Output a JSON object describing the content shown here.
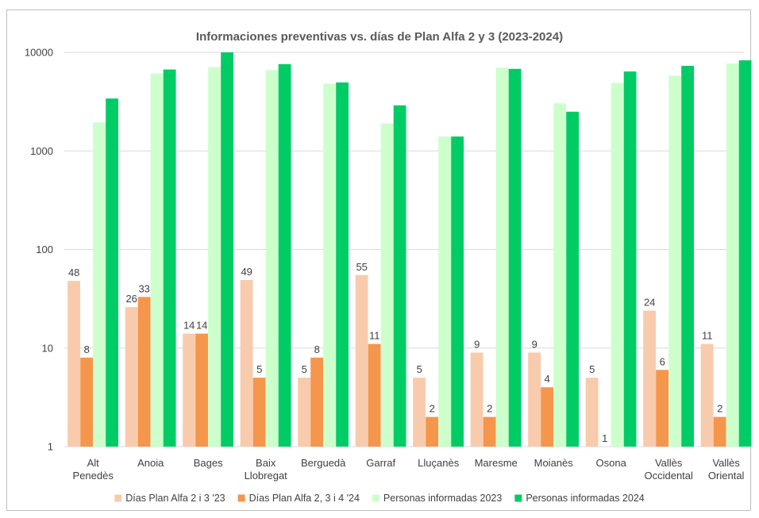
{
  "chart_data": {
    "type": "bar",
    "title": "Informaciones preventivas vs. días de Plan Alfa 2 y 3  (2023-2024)",
    "yscale": "log",
    "ylim": [
      1,
      10000
    ],
    "yticks": [
      "1",
      "10",
      "100",
      "1000",
      "10000"
    ],
    "grid": true,
    "legend": "bottom",
    "categories": [
      [
        "Alt",
        "Penedès"
      ],
      [
        "Anoia"
      ],
      [
        "Bages"
      ],
      [
        "Baix",
        "Llobregat"
      ],
      [
        "Berguedà"
      ],
      [
        "Garraf"
      ],
      [
        "Lluçanès"
      ],
      [
        "Maresme"
      ],
      [
        "Moianès"
      ],
      [
        "Osona"
      ],
      [
        "Vallès",
        "Occidental"
      ],
      [
        "Vallès",
        "Oriental"
      ]
    ],
    "series": [
      {
        "name": "Días Plan Alfa 2 i 3 '23",
        "color": "#f8cbad",
        "values": [
          48,
          26,
          14,
          49,
          5,
          55,
          5,
          9,
          9,
          5,
          24,
          11
        ],
        "labels": [
          "48",
          "26",
          "14",
          "49",
          "5",
          "55",
          "5",
          "9",
          "9",
          "5",
          "24",
          "11"
        ]
      },
      {
        "name": "Días Plan Alfa 2, 3  i 4 '24",
        "color": "#f4964c",
        "values": [
          8,
          33,
          14,
          5,
          8,
          11,
          2,
          2,
          4,
          1,
          6,
          2
        ],
        "labels": [
          "8",
          "33",
          "14",
          "5",
          "8",
          "11",
          "2",
          "2",
          "4",
          "1",
          "6",
          "2"
        ]
      },
      {
        "name": "Personas informadas 2023",
        "color": "#ccffcc",
        "values": [
          1950,
          6100,
          7100,
          6600,
          4800,
          1900,
          1400,
          7000,
          3050,
          4900,
          5800,
          7700
        ],
        "labels": []
      },
      {
        "name": "Personas informadas 2024",
        "color": "#00cc66",
        "values": [
          3400,
          6700,
          10000,
          7600,
          4950,
          2900,
          1400,
          6800,
          2500,
          6400,
          7300,
          8300
        ],
        "labels": []
      }
    ]
  }
}
